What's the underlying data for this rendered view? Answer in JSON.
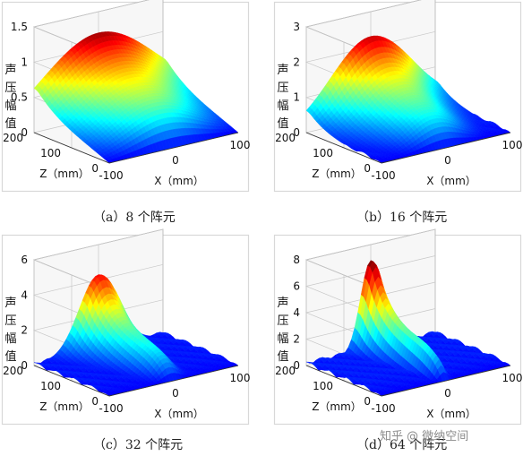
{
  "chart_data": [
    {
      "type": "surface3d",
      "caption": "（a）8 个阵元",
      "zlabel_chars": [
        "声",
        "压",
        "幅",
        "值"
      ],
      "xlabel": "X（mm）",
      "ylabel": "Z（mm）",
      "zlim": [
        0,
        1.5
      ],
      "zticks": [
        "0",
        "0.5",
        "1",
        "1.5"
      ],
      "xticks": [
        "-100",
        "0",
        "100"
      ],
      "yticks": [
        "0",
        "100",
        "200"
      ],
      "peak": 1.2,
      "beam_shape": "wide"
    },
    {
      "type": "surface3d",
      "caption": "（b）16 个阵元",
      "zlabel_chars": [
        "声",
        "压",
        "幅",
        "值"
      ],
      "xlabel": "X（mm）",
      "ylabel": "Z（mm）",
      "zlim": [
        0,
        3
      ],
      "zticks": [
        "0",
        "1",
        "2",
        "3"
      ],
      "xticks": [
        "-100",
        "0",
        "100"
      ],
      "yticks": [
        "0",
        "100",
        "200"
      ],
      "peak": 2.3,
      "beam_shape": "medium"
    },
    {
      "type": "surface3d",
      "caption": "（c）32 个阵元",
      "zlabel_chars": [
        "声",
        "压",
        "幅",
        "值"
      ],
      "xlabel": "X（mm）",
      "ylabel": "Z（mm）",
      "zlim": [
        0,
        6
      ],
      "zticks": [
        "0",
        "2",
        "4",
        "6"
      ],
      "xticks": [
        "-100",
        "0",
        "100"
      ],
      "yticks": [
        "0",
        "100",
        "200"
      ],
      "peak": 4.3,
      "beam_shape": "narrow"
    },
    {
      "type": "surface3d",
      "caption": "（d）64 个阵元",
      "zlabel_chars": [
        "声",
        "压",
        "幅",
        "值"
      ],
      "xlabel": "X（mm）",
      "ylabel": "Z（mm）",
      "zlim": [
        0,
        8
      ],
      "zticks": [
        "0",
        "2",
        "4",
        "6",
        "8"
      ],
      "xticks": [
        "-100",
        "0",
        "100"
      ],
      "yticks": [
        "0",
        "100",
        "200"
      ],
      "peak": 6.8,
      "beam_shape": "very-narrow"
    }
  ],
  "watermark": "知乎 @ 微纳空间",
  "colors": {
    "frame": "#d8d8d8",
    "axis": "#000000",
    "grid": "#c8c8c8",
    "panel_bg": "#f7f7f7"
  }
}
